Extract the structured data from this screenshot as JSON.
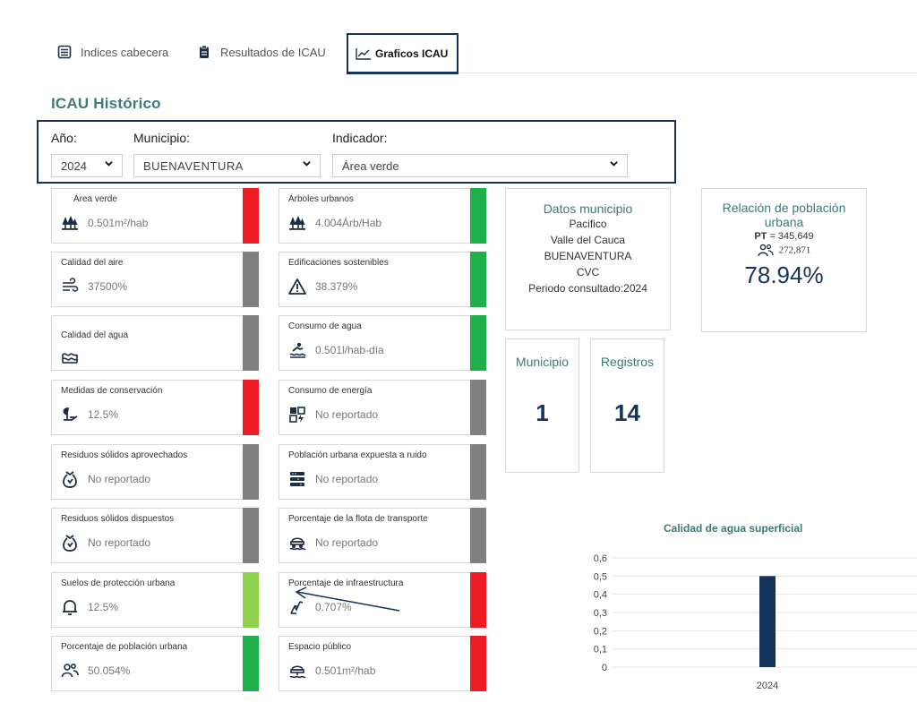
{
  "tabs": [
    {
      "label": "Indices cabecera",
      "icon": "table-list-icon"
    },
    {
      "label": "Resultados de ICAU",
      "icon": "clipboard-icon"
    },
    {
      "label": "Graficos ICAU",
      "icon": "line-chart-icon",
      "active": true
    }
  ],
  "page_title": "ICAU Histórico",
  "filters": {
    "year_label": "Año:",
    "year_value": "2024",
    "municipio_label": "Municipio:",
    "municipio_value": "BUENAVENTURA",
    "indicador_label": "Indicador:",
    "indicador_value": "Área verde"
  },
  "indicators": [
    {
      "title": "Área verde",
      "value": "0.501m²/hab",
      "icon": "trees-icon",
      "color": "#ee1c25"
    },
    {
      "title": "Árboles urbanos",
      "value": "4.004Árb/Hab",
      "icon": "trees-icon",
      "color": "#1fb04b"
    },
    {
      "title": "Calidad del aire",
      "value": "37500%",
      "icon": "wind-icon",
      "color": "#808080"
    },
    {
      "title": "Edificaciones sostenibles",
      "value": "38.379%",
      "icon": "warning-icon",
      "color": "#1fb04b"
    },
    {
      "title": "Calidad del agua",
      "value": "",
      "icon": "water-waves-icon",
      "color": "#808080"
    },
    {
      "title": "Consumo de agua",
      "value": "0.501l/hab-día",
      "icon": "water-person-icon",
      "color": "#1fb04b"
    },
    {
      "title": "Medidas de conservación",
      "value": "12.5%",
      "icon": "plant-hand-icon",
      "color": "#ee1c25"
    },
    {
      "title": "Consumo de energía",
      "value": "No reportado",
      "icon": "energy-grid-icon",
      "color": "#808080"
    },
    {
      "title": "Residuos sólidos aprovechados",
      "value": "No reportado",
      "icon": "recycle-bag-icon",
      "color": "#808080"
    },
    {
      "title": "Población urbana expuesta a ruido",
      "value": "No reportado",
      "icon": "noise-icon",
      "color": "#808080"
    },
    {
      "title": "Residuos sólidos dispuestos",
      "value": "No reportado",
      "icon": "recycle-bag-icon",
      "color": "#808080"
    },
    {
      "title": "Porcentaje de la flota de transporte",
      "value": "No reportado",
      "icon": "transport-icon",
      "color": "#808080"
    },
    {
      "title": "Suelos de protección urbana",
      "value": "12.5%",
      "icon": "bell-icon",
      "color": "#8fd14f"
    },
    {
      "title": "Porcentaje de infraestructura",
      "value": "0.707%",
      "icon": "infrastructure-icon",
      "color": "#ee1c25"
    },
    {
      "title": "Porcentaje de población urbana",
      "value": "50.054%",
      "icon": "people-icon",
      "color": "#1fb04b"
    },
    {
      "title": "Espacio público",
      "value": "0.501m²/hab",
      "icon": "public-space-icon",
      "color": "#ee1c25"
    }
  ],
  "datos": {
    "title": "Datos municipio",
    "region": "Pacifico",
    "department": "Valle del Cauca",
    "municipio": "BUENAVENTURA",
    "authority": "CVC",
    "period": "Periodo consultado:2024"
  },
  "relacion": {
    "title_line1": "Relación de población",
    "title_line2": "urbana",
    "pt_label": "PT",
    "pt_value": "= 345,649",
    "urban_value": "272,871",
    "percent": "78.94%"
  },
  "counters": [
    {
      "label": "Municipio",
      "value": "1"
    },
    {
      "label": "Registros",
      "value": "14"
    }
  ],
  "chart_data": {
    "type": "bar",
    "title": "Calidad de agua superficial",
    "categories": [
      "2024"
    ],
    "values": [
      0.5
    ],
    "ylim": [
      0,
      0.6
    ],
    "yticks": [
      "0",
      "0,1",
      "0,2",
      "0,3",
      "0,4",
      "0,5",
      "0,6"
    ],
    "bar_color": "#14335a",
    "grid": true
  }
}
